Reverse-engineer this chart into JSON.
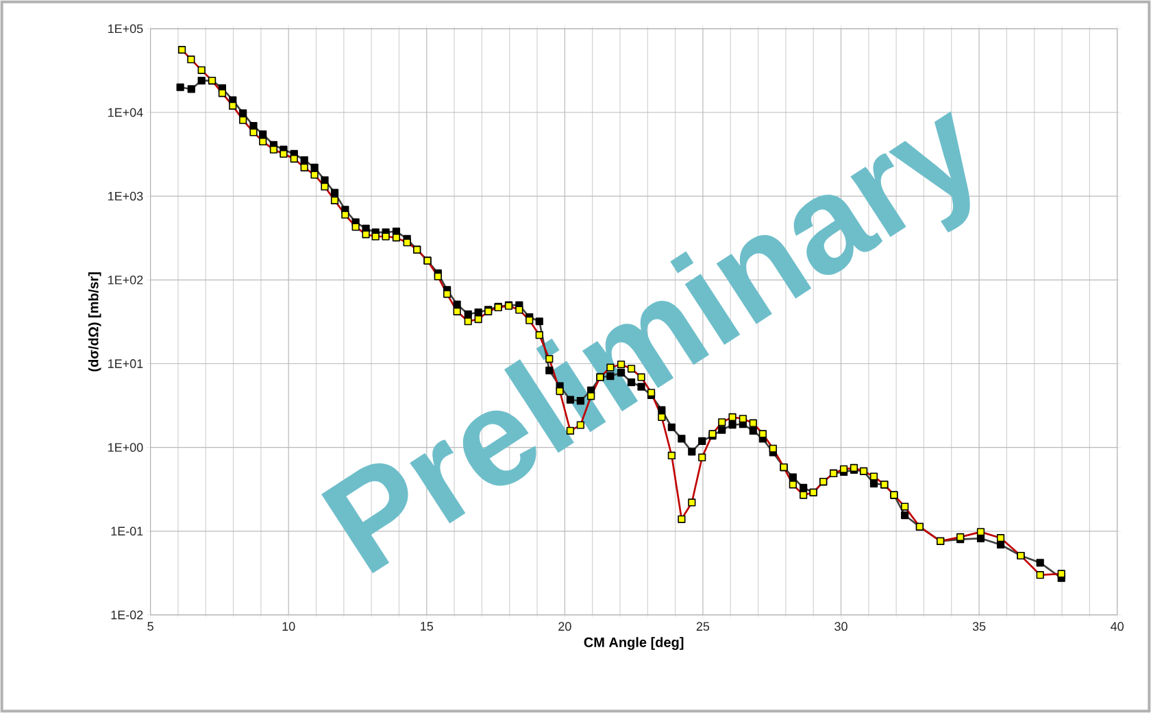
{
  "chart_data": {
    "type": "line",
    "xlabel": "CM Angle [deg]",
    "ylabel": "(dσ/dΩ)  [mb/sr]",
    "annotations": [
      "Preliminary"
    ],
    "log": "y",
    "grid": true,
    "marker": "square",
    "line_style": "solid",
    "xlim": [
      5,
      40
    ],
    "xticks": [
      5,
      10,
      15,
      20,
      25,
      30,
      35,
      40
    ],
    "ylim": [
      0.01,
      100000
    ],
    "yticks": [
      {
        "value": 0.01,
        "label": "1E-02"
      },
      {
        "value": 0.1,
        "label": "1E-01"
      },
      {
        "value": 1,
        "label": "1E+00"
      },
      {
        "value": 10,
        "label": "1E+01"
      },
      {
        "value": 100,
        "label": "1E+02"
      },
      {
        "value": 1000,
        "label": "1E+03"
      },
      {
        "value": 10000,
        "label": "1E+04"
      },
      {
        "value": 100000,
        "label": "1E+05"
      }
    ],
    "series": [
      {
        "color": "#000000",
        "x": [
          6.08,
          6.48,
          6.85,
          7.23,
          7.6,
          7.98,
          8.35,
          8.73,
          9.07,
          9.46,
          9.82,
          10.2,
          10.57,
          10.94,
          11.31,
          11.67,
          12.05,
          12.43,
          12.8,
          13.15,
          13.52,
          13.9,
          14.29,
          14.65,
          15.03,
          15.41,
          15.74,
          16.1,
          16.5,
          16.87,
          17.23,
          17.59,
          17.97,
          18.35,
          18.72,
          19.08,
          19.44,
          19.82,
          20.2,
          20.57,
          20.95,
          21.28,
          21.65,
          22.04,
          22.41,
          22.77,
          23.13,
          23.51,
          23.87,
          24.23,
          24.6,
          24.97,
          25.35,
          25.69,
          26.07,
          26.45,
          26.82,
          27.17,
          27.54,
          27.93,
          28.26,
          28.64,
          29.0,
          29.36,
          29.73,
          30.1,
          30.47,
          30.82,
          31.19,
          31.57,
          31.92,
          32.31,
          32.85,
          33.6,
          34.32,
          35.06,
          35.78,
          36.51,
          37.21,
          37.98
        ],
        "values": [
          20000,
          19000,
          24000,
          24000,
          19500,
          14000,
          9800,
          6900,
          5500,
          4100,
          3600,
          3200,
          2700,
          2200,
          1550,
          1100,
          690,
          490,
          410,
          370,
          370,
          380,
          310,
          230,
          170,
          120,
          76,
          51,
          39,
          41,
          44,
          48,
          50,
          50,
          36,
          32,
          8.3,
          5.4,
          3.7,
          3.6,
          4.8,
          6.9,
          7.1,
          7.8,
          6.0,
          5.3,
          4.2,
          2.8,
          1.74,
          1.27,
          0.89,
          1.19,
          1.38,
          1.62,
          1.86,
          1.9,
          1.58,
          1.27,
          0.87,
          0.58,
          0.44,
          0.33,
          0.29,
          0.39,
          0.49,
          0.51,
          0.54,
          0.52,
          0.37,
          0.36,
          0.27,
          0.155,
          0.113,
          0.076,
          0.08,
          0.082,
          0.069,
          0.051,
          0.042,
          0.0275
        ]
      },
      {
        "color": "#ffff00",
        "x": [
          6.14,
          6.47,
          6.85,
          7.23,
          7.6,
          7.98,
          8.35,
          8.73,
          9.07,
          9.46,
          9.82,
          10.2,
          10.57,
          10.94,
          11.31,
          11.67,
          12.05,
          12.43,
          12.8,
          13.15,
          13.52,
          13.9,
          14.29,
          14.65,
          15.03,
          15.41,
          15.74,
          16.1,
          16.5,
          16.87,
          17.23,
          17.59,
          17.97,
          18.35,
          18.72,
          19.08,
          19.44,
          19.82,
          20.2,
          20.57,
          20.95,
          21.28,
          21.65,
          22.04,
          22.41,
          22.77,
          23.13,
          23.51,
          23.87,
          24.23,
          24.6,
          24.97,
          25.35,
          25.69,
          26.07,
          26.45,
          26.82,
          27.17,
          27.54,
          27.93,
          28.26,
          28.64,
          29.0,
          29.36,
          29.73,
          30.1,
          30.47,
          30.82,
          31.19,
          31.57,
          31.92,
          32.31,
          32.85,
          33.6,
          34.32,
          35.06,
          35.78,
          36.51,
          37.21,
          37.98
        ],
        "values": [
          56000,
          43000,
          32000,
          24000,
          17000,
          12000,
          8100,
          5800,
          4500,
          3600,
          3200,
          2800,
          2200,
          1800,
          1300,
          890,
          600,
          430,
          350,
          330,
          330,
          320,
          280,
          230,
          170,
          110,
          68,
          42,
          32,
          34,
          42,
          47,
          49,
          44,
          33,
          22,
          11.4,
          4.7,
          1.58,
          1.85,
          4.1,
          6.9,
          9.0,
          9.8,
          8.7,
          6.9,
          4.5,
          2.3,
          0.8,
          0.139,
          0.22,
          0.76,
          1.45,
          2.0,
          2.3,
          2.2,
          1.95,
          1.45,
          0.97,
          0.58,
          0.36,
          0.27,
          0.29,
          0.39,
          0.49,
          0.55,
          0.57,
          0.52,
          0.45,
          0.36,
          0.27,
          0.196,
          0.113,
          0.076,
          0.085,
          0.098,
          0.083,
          0.051,
          0.03,
          0.031
        ]
      }
    ]
  }
}
